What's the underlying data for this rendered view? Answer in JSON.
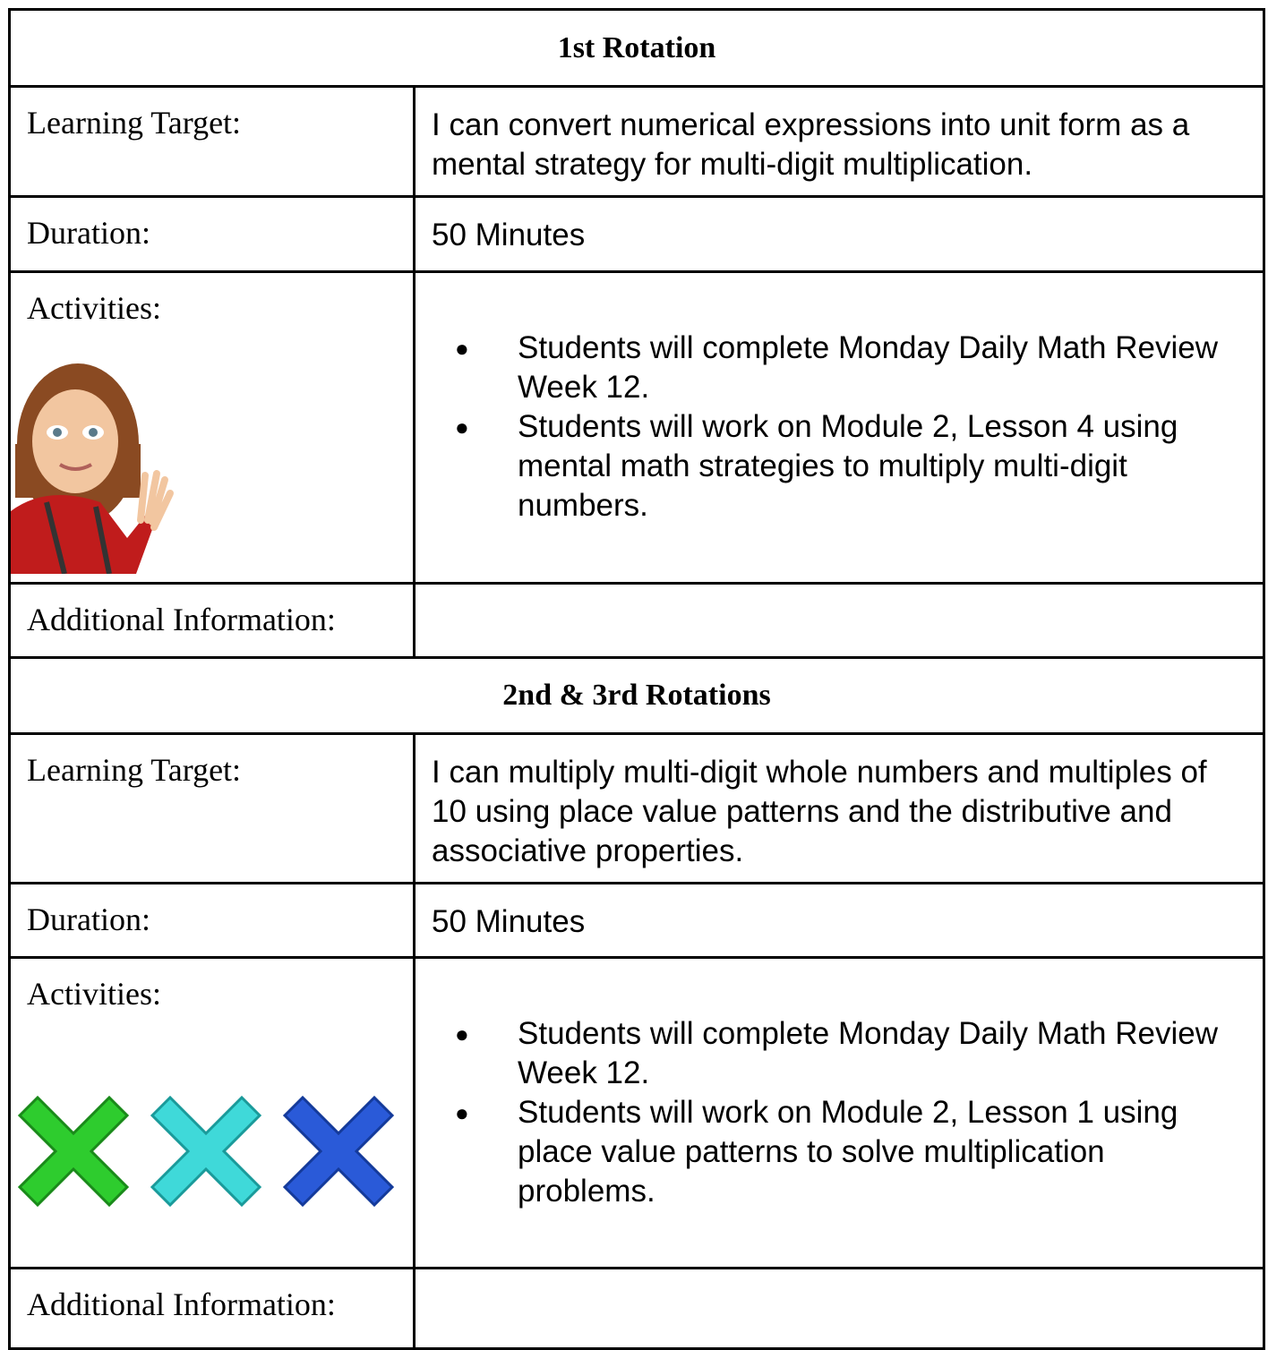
{
  "sections": [
    {
      "title": "1st Rotation",
      "rows": [
        {
          "label": "Learning Target:",
          "text": "I can convert numerical expressions into unit form as a mental strategy for multi-digit multiplication."
        },
        {
          "label": "Duration:",
          "text": "50 Minutes"
        },
        {
          "label": "Activities:",
          "items": [
            "Students will complete Monday Daily Math Review Week 12.",
            "Students will work on Module 2, Lesson 4 using mental math strategies to multiply multi-digit numbers."
          ]
        },
        {
          "label": "Additional Information:"
        }
      ]
    },
    {
      "title": "2nd & 3rd Rotations",
      "rows": [
        {
          "label": "Learning Target:",
          "text": "I can multiply multi-digit whole numbers and multiples of 10 using place value patterns and the distributive and associative properties."
        },
        {
          "label": "Duration:",
          "text": "50 Minutes"
        },
        {
          "label": "Activities:",
          "items": [
            "Students will complete Monday Daily Math Review Week 12.",
            "Students will work on Module 2, Lesson 1 using place value patterns to solve multiplication problems."
          ]
        },
        {
          "label": "Additional Information:"
        }
      ]
    }
  ]
}
